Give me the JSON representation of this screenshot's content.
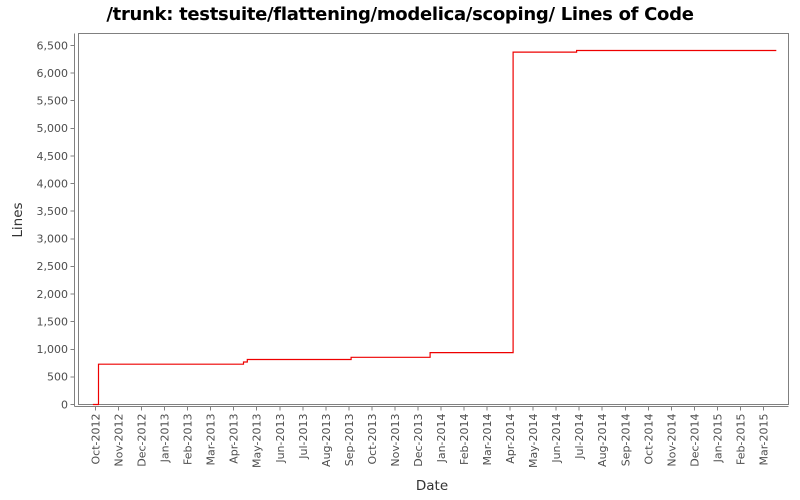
{
  "title": "/trunk: testsuite/flattening/modelica/scoping/ Lines of Code",
  "chart_data": {
    "type": "line",
    "title": "/trunk: testsuite/flattening/modelica/scoping/ Lines of Code",
    "xlabel": "Date",
    "ylabel": "Lines",
    "grid": false,
    "legend": "none",
    "line_color": "#ee0000",
    "axis_color": "#808080",
    "tick_label_color": "#4d4d4d",
    "ylim": [
      0,
      6700
    ],
    "x_range": [
      "2012-09-10",
      "2015-04-03"
    ],
    "x_tick_labels": [
      "Oct-2012",
      "Nov-2012",
      "Dec-2012",
      "Jan-2013",
      "Feb-2013",
      "Mar-2013",
      "Apr-2013",
      "May-2013",
      "Jun-2013",
      "Jul-2013",
      "Aug-2013",
      "Sep-2013",
      "Oct-2013",
      "Nov-2013",
      "Dec-2013",
      "Jan-2014",
      "Feb-2014",
      "Mar-2014",
      "Apr-2014",
      "May-2014",
      "Jun-2014",
      "Jul-2014",
      "Aug-2014",
      "Sep-2014",
      "Oct-2014",
      "Nov-2014",
      "Dec-2014",
      "Jan-2015",
      "Feb-2015",
      "Mar-2015"
    ],
    "y_ticks": [
      {
        "value": 0,
        "label": "0"
      },
      {
        "value": 500,
        "label": "500"
      },
      {
        "value": 1000,
        "label": "1,000"
      },
      {
        "value": 1500,
        "label": "1,500"
      },
      {
        "value": 2000,
        "label": "2,000"
      },
      {
        "value": 2500,
        "label": "2,500"
      },
      {
        "value": 3000,
        "label": "3,000"
      },
      {
        "value": 3500,
        "label": "3,500"
      },
      {
        "value": 4000,
        "label": "4,000"
      },
      {
        "value": 4500,
        "label": "4,500"
      },
      {
        "value": 5000,
        "label": "5,000"
      },
      {
        "value": 5500,
        "label": "5,500"
      },
      {
        "value": 6000,
        "label": "6,000"
      },
      {
        "value": 6500,
        "label": "6,500"
      }
    ],
    "series": [
      {
        "name": "Lines of Code",
        "points": [
          {
            "date": "2012-09-28",
            "lines": 0
          },
          {
            "date": "2012-10-05",
            "lines": 0
          },
          {
            "date": "2012-10-05",
            "lines": 730
          },
          {
            "date": "2013-04-14",
            "lines": 730
          },
          {
            "date": "2013-04-14",
            "lines": 770
          },
          {
            "date": "2013-04-19",
            "lines": 770
          },
          {
            "date": "2013-04-19",
            "lines": 815
          },
          {
            "date": "2013-09-04",
            "lines": 815
          },
          {
            "date": "2013-09-04",
            "lines": 855
          },
          {
            "date": "2013-12-17",
            "lines": 855
          },
          {
            "date": "2013-12-17",
            "lines": 940
          },
          {
            "date": "2014-04-05",
            "lines": 940
          },
          {
            "date": "2014-04-05",
            "lines": 6380
          },
          {
            "date": "2014-06-28",
            "lines": 6380
          },
          {
            "date": "2014-06-28",
            "lines": 6410
          },
          {
            "date": "2015-03-18",
            "lines": 6410
          }
        ]
      }
    ]
  }
}
